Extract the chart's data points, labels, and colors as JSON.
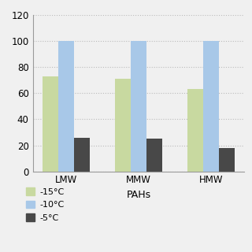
{
  "categories": [
    "LMW",
    "MMW",
    "HMW"
  ],
  "series": {
    "-15°C": [
      73,
      71,
      63
    ],
    "-10°C": [
      100,
      100,
      100
    ],
    "-5°C": [
      26,
      25,
      18
    ]
  },
  "colors": {
    "-15°C": "#c8d9a0",
    "-10°C": "#a8c8e8",
    "-5°C": "#484848"
  },
  "xlabel": "PAHs",
  "ylabel": "",
  "ylim": [
    0,
    120
  ],
  "yticks": [
    0,
    20,
    40,
    60,
    80,
    100,
    120
  ],
  "title": "",
  "bar_width": 0.22,
  "background_color": "#f0f0f0",
  "grid_color": "#bbbbbb",
  "legend_order": [
    "-15°C",
    "-10°C",
    "-5°C"
  ]
}
